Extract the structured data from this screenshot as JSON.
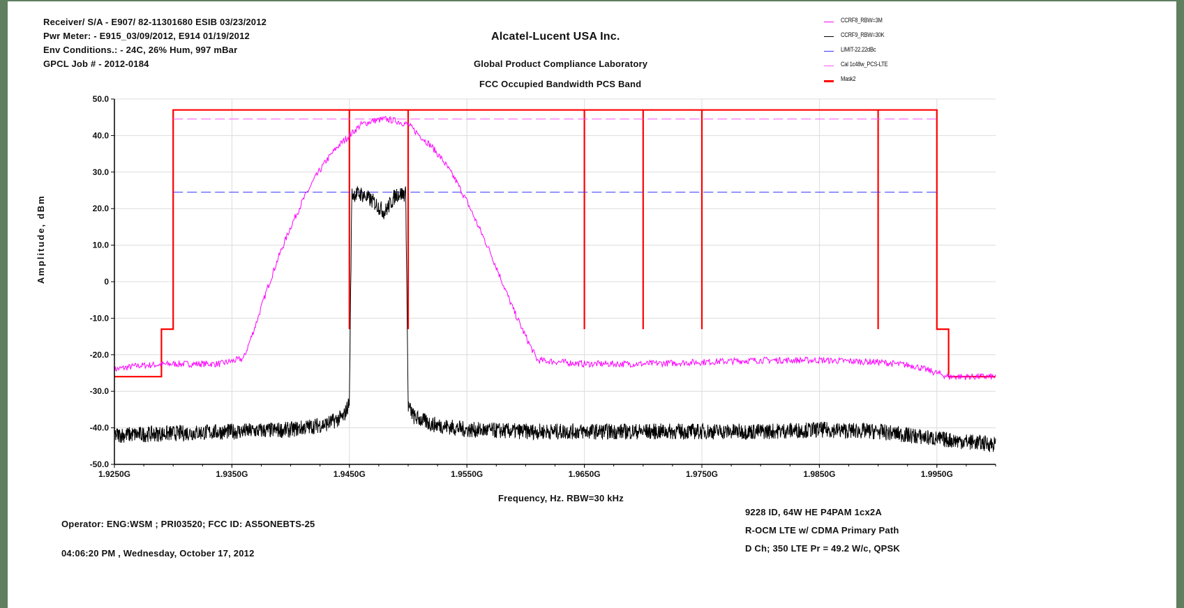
{
  "header_left": {
    "line1": "Receiver/ S/A - E907/ 82-11301680 ESIB 03/23/2012",
    "line2": "Pwr Meter: - E915_03/09/2012, E914 01/19/2012",
    "line3": "Env Conditions.: - 24C, 26% Hum,  997 mBar",
    "line4": "GPCL Job #  - 2012-0184"
  },
  "header_center": {
    "company": "Alcatel-Lucent USA Inc.",
    "lab": "Global Product Compliance Laboratory",
    "test": "FCC Occupied Bandwidth PCS Band"
  },
  "footer": {
    "operator": "Operator:  ENG:WSM ; PRI03520;  FCC ID: AS5ONEBTS-25",
    "datetime": "04:06:20 PM , Wednesday, October 17, 2012",
    "config1": "9228 ID, 64W HE P4PAM 1cx2A",
    "config2": "R-OCM LTE w/ CDMA   Primary Path",
    "config3": "D Ch; 350 LTE Pr = 49.2 W/c, QPSK"
  },
  "colors": {
    "ccrf8": "#ff00ff",
    "ccrf9": "#000000",
    "limit": "#3333ff",
    "cal": "#ff55ff",
    "mask": "#ff0000",
    "frame": "#5f7f5f"
  },
  "chart_data": {
    "type": "line",
    "xlabel": "Frequency, Hz.  RBW=30 kHz",
    "ylabel": "Amplitude, dBm",
    "xlim": [
      1.925,
      2.0
    ],
    "ylim": [
      -50,
      50
    ],
    "x_ticks": [
      1.925,
      1.935,
      1.945,
      1.955,
      1.965,
      1.975,
      1.985,
      1.995
    ],
    "x_tick_labels": [
      "1.9250G",
      "1.9350G",
      "1.9450G",
      "1.9550G",
      "1.9650G",
      "1.9750G",
      "1.9850G",
      "1.9950G"
    ],
    "y_ticks": [
      50,
      40,
      30,
      20,
      10,
      0,
      -10,
      -20,
      -30,
      -40,
      -50
    ],
    "y_tick_labels": [
      "50.0",
      "40.0",
      "30.0",
      "20.0",
      "10.0",
      "0",
      "-10.0",
      "-20.0",
      "-30.0",
      "-40.0",
      "-50.0"
    ],
    "grid": true,
    "legend_position": "top-right",
    "legend": [
      "CCRF8_RBW=3M",
      "CCRF9_RBW=30K",
      "LIMIT-22.22dBc",
      "Cal 1c48w_PCS-LTE",
      "Mask2"
    ],
    "series": [
      {
        "name": "CCRF8_RBW=3M",
        "x": [
          1.925,
          1.927,
          1.93,
          1.932,
          1.934,
          1.936,
          1.937,
          1.938,
          1.939,
          1.94,
          1.941,
          1.942,
          1.943,
          1.944,
          1.945,
          1.946,
          1.947,
          1.948,
          1.949,
          1.95,
          1.951,
          1.952,
          1.953,
          1.954,
          1.955,
          1.956,
          1.957,
          1.958,
          1.959,
          1.96,
          1.961,
          1.965,
          1.97,
          1.975,
          1.98,
          1.985,
          1.99,
          1.993,
          1.995,
          1.996,
          2.0
        ],
        "y": [
          -24,
          -23,
          -22.5,
          -22.5,
          -22.5,
          -21,
          -12,
          -2,
          7,
          15,
          22,
          28,
          33,
          37,
          40,
          43,
          44,
          44.5,
          44,
          43,
          40,
          37,
          33,
          28,
          22,
          15,
          8,
          0,
          -8,
          -15,
          -21.5,
          -22.5,
          -22.5,
          -22,
          -21.5,
          -21.5,
          -22,
          -23,
          -25,
          -26,
          -26
        ]
      },
      {
        "name": "CCRF9_RBW=30K",
        "x": [
          1.925,
          1.93,
          1.935,
          1.94,
          1.943,
          1.9445,
          1.945,
          1.9452,
          1.946,
          1.947,
          1.948,
          1.949,
          1.9498,
          1.95,
          1.9505,
          1.952,
          1.955,
          1.96,
          1.965,
          1.97,
          1.975,
          1.98,
          1.985,
          1.99,
          1.995,
          2.0
        ],
        "y": [
          -42,
          -41.5,
          -41,
          -40.5,
          -39,
          -37,
          -33,
          24,
          24,
          22,
          19,
          24,
          24,
          -34,
          -37,
          -39,
          -40.5,
          -41,
          -41,
          -41,
          -41,
          -41,
          -40.5,
          -41,
          -43,
          -44.5
        ]
      },
      {
        "name": "LIMIT-22.22dBc",
        "x": [
          1.93,
          1.995
        ],
        "y": [
          24.5,
          24.5
        ]
      },
      {
        "name": "Cal 1c48w_PCS-LTE",
        "x": [
          1.93,
          1.995
        ],
        "y": [
          44.5,
          44.5
        ]
      },
      {
        "name": "Mask2",
        "x": [
          1.925,
          1.929,
          1.929,
          1.93,
          1.93,
          1.995,
          1.995,
          1.996,
          1.996,
          2.0
        ],
        "y": [
          -26,
          -26,
          -13,
          -13,
          47,
          47,
          -13,
          -13,
          -26,
          -26
        ],
        "vertical_lines_x": [
          1.945,
          1.95,
          1.965,
          1.97,
          1.975,
          1.99
        ],
        "vertical_lines_bottom": -13
      }
    ]
  }
}
